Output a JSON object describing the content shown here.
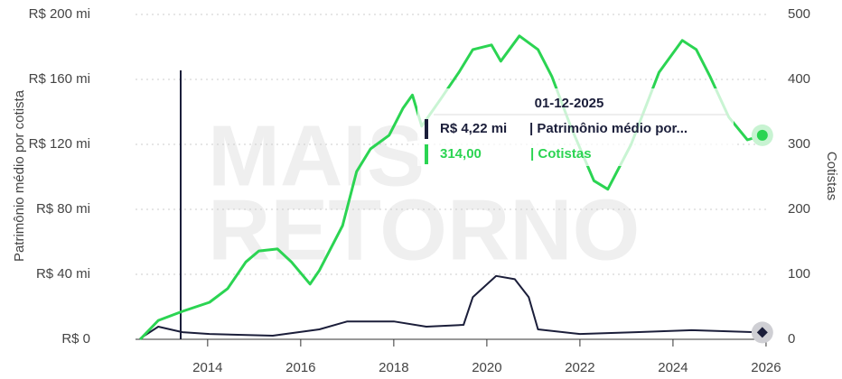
{
  "chart_data": {
    "type": "line",
    "ylabel": "Patrimônio médio por cotista",
    "y2label": "Cotistas",
    "watermark": [
      "MAIS",
      "RETORNO"
    ],
    "xlim": [
      2012.45,
      2026.04
    ],
    "xticks": [
      2014,
      2016,
      2018,
      2020,
      2022,
      2024,
      2026
    ],
    "ylim": [
      0,
      200
    ],
    "yticks": [
      {
        "value": 0,
        "label": "R$ 0"
      },
      {
        "value": 40,
        "label": "R$ 40 mi"
      },
      {
        "value": 80,
        "label": "R$ 80 mi"
      },
      {
        "value": 120,
        "label": "R$ 120 mi"
      },
      {
        "value": 160,
        "label": "R$ 160 mi"
      },
      {
        "value": 200,
        "label": "R$ 200 mi"
      }
    ],
    "y2lim": [
      0,
      500
    ],
    "y2ticks": [
      0,
      100,
      200,
      300,
      400,
      500
    ],
    "grid": true,
    "series": [
      {
        "color": "#1b1e3a",
        "axis": "y",
        "x": [
          2012.55,
          2012.94,
          2013.46,
          2014.04,
          2015.4,
          2016.4,
          2017.0,
          2018.0,
          2018.7,
          2019.5,
          2019.7,
          2020.2,
          2020.6,
          2020.9,
          2021.1,
          2022.0,
          2023.2,
          2024.4,
          2025.92
        ],
        "values": [
          0.5,
          7.8,
          4.4,
          3.3,
          2.2,
          6.1,
          11,
          11,
          7.8,
          8.9,
          26,
          39,
          37,
          26,
          6.1,
          3.3,
          4.4,
          5.6,
          4.22
        ]
      },
      {
        "color": "#2bd452",
        "axis": "y2",
        "x": [
          2012.55,
          2012.94,
          2013.46,
          2014.04,
          2014.43,
          2014.82,
          2015.1,
          2015.5,
          2015.8,
          2016.2,
          2016.4,
          2016.9,
          2017.2,
          2017.5,
          2017.9,
          2018.2,
          2018.4,
          2018.6,
          2019.0,
          2019.4,
          2019.7,
          2020.1,
          2020.3,
          2020.7,
          2021.1,
          2021.4,
          2021.8,
          2022.3,
          2022.6,
          2023.1,
          2023.7,
          2024.2,
          2024.5,
          2024.8,
          2025.2,
          2025.6,
          2025.92
        ],
        "values": [
          0,
          29,
          43,
          57,
          78,
          119,
          136,
          139,
          119,
          85,
          106,
          175,
          258,
          293,
          314,
          356,
          376,
          328,
          369,
          411,
          446,
          453,
          428,
          467,
          446,
          404,
          328,
          244,
          231,
          300,
          411,
          460,
          446,
          404,
          342,
          307,
          314
        ]
      }
    ],
    "tooltip": {
      "date": "01-12-2025",
      "lines": [
        {
          "value": "R$ 4,22 mi",
          "label": "| Patrimônio médio por..."
        },
        {
          "value": "314,00",
          "label": "| Cotistas"
        }
      ]
    }
  }
}
